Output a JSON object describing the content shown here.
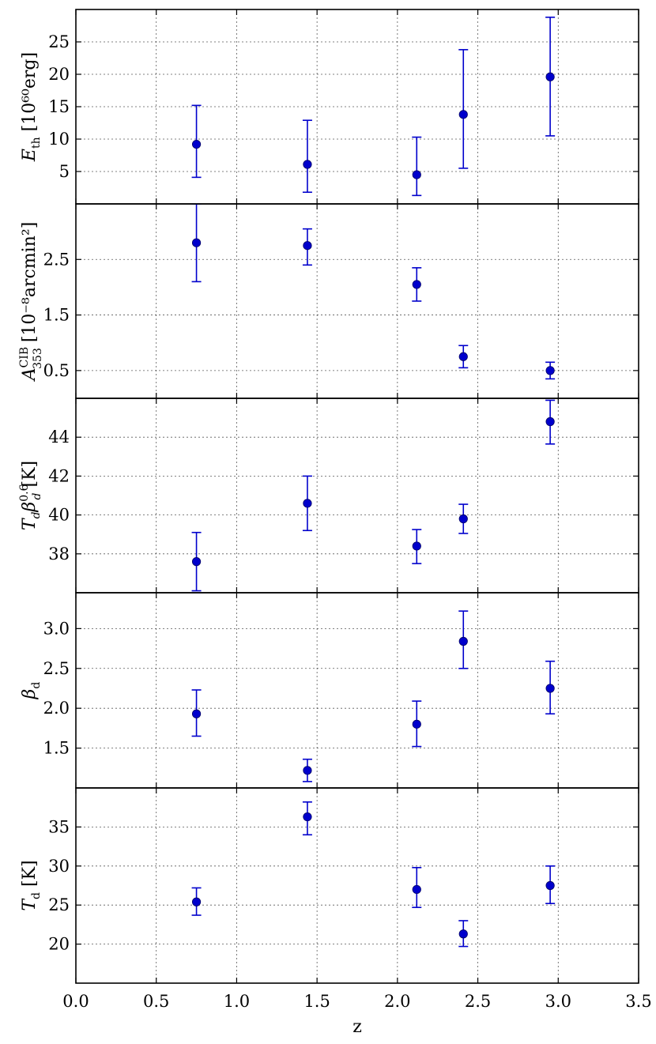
{
  "chart_data": {
    "type": "scatter",
    "x_axis": {
      "label": "z",
      "xlim": [
        0.0,
        3.5
      ],
      "ticks": [
        0.0,
        0.5,
        1.0,
        1.5,
        2.0,
        2.5,
        3.0,
        3.5
      ],
      "tick_labels": [
        "0.0",
        "0.5",
        "1.0",
        "1.5",
        "2.0",
        "2.5",
        "3.0",
        "3.5"
      ]
    },
    "grid": true,
    "panels": [
      {
        "id": "eth",
        "ylabel_main": "E",
        "ylabel_sub": "th",
        "ylabel_unit": "[10⁶⁰erg]",
        "ylim": [
          0,
          30
        ],
        "yticks": [
          5,
          10,
          15,
          20,
          25
        ],
        "ytick_labels": [
          "5",
          "10",
          "15",
          "20",
          "25"
        ],
        "x": [
          0.75,
          1.44,
          2.12,
          2.41,
          2.95
        ],
        "y": [
          9.2,
          6.1,
          4.5,
          13.8,
          19.6
        ],
        "yerr_low": [
          5.1,
          4.3,
          3.2,
          8.3,
          9.1
        ],
        "yerr_high": [
          6.0,
          6.8,
          5.8,
          10.0,
          9.2
        ]
      },
      {
        "id": "acib",
        "ylabel_main": "A",
        "ylabel_sup": "CIB",
        "ylabel_sub": "353",
        "ylabel_unit": "[10⁻⁸arcmin²]",
        "ylim": [
          0,
          3.5
        ],
        "yticks": [
          0.5,
          1.5,
          2.5
        ],
        "ytick_labels": [
          "0.5",
          "1.5",
          "2.5"
        ],
        "x": [
          0.75,
          1.44,
          2.12,
          2.41,
          2.95
        ],
        "y": [
          2.8,
          2.75,
          2.05,
          0.75,
          0.5
        ],
        "yerr_low": [
          0.7,
          0.35,
          0.3,
          0.2,
          0.15
        ],
        "yerr_high": [
          0.7,
          0.3,
          0.3,
          0.2,
          0.15
        ]
      },
      {
        "id": "tdbeta",
        "ylabel_main": "T",
        "ylabel_sub": "d",
        "ylabel_beta": "β",
        "ylabel_beta_sup": "0.6",
        "ylabel_beta_sub": "d",
        "ylabel_unit": "[K]",
        "ylim": [
          36,
          46
        ],
        "yticks": [
          38,
          40,
          42,
          44
        ],
        "ytick_labels": [
          "38",
          "40",
          "42",
          "44"
        ],
        "x": [
          0.75,
          1.44,
          2.12,
          2.41,
          2.95
        ],
        "y": [
          37.6,
          40.6,
          38.4,
          39.8,
          44.8
        ],
        "yerr_low": [
          1.5,
          1.4,
          0.9,
          0.75,
          1.15
        ],
        "yerr_high": [
          1.5,
          1.4,
          0.85,
          0.75,
          1.1
        ]
      },
      {
        "id": "beta",
        "ylabel_main": "β",
        "ylabel_sub": "d",
        "ylabel_unit": "",
        "ylim": [
          1.0,
          3.45
        ],
        "yticks": [
          1.5,
          2.0,
          2.5,
          3.0
        ],
        "ytick_labels": [
          "1.5",
          "2.0",
          "2.5",
          "3.0"
        ],
        "x": [
          0.75,
          1.44,
          2.12,
          2.41,
          2.95
        ],
        "y": [
          1.93,
          1.22,
          1.8,
          2.84,
          2.25
        ],
        "yerr_low": [
          0.28,
          0.14,
          0.28,
          0.34,
          0.32
        ],
        "yerr_high": [
          0.3,
          0.14,
          0.29,
          0.38,
          0.34
        ]
      },
      {
        "id": "td",
        "ylabel_main": "T",
        "ylabel_sub": "d",
        "ylabel_unit": "[K]",
        "ylim": [
          15,
          40
        ],
        "yticks": [
          20,
          25,
          30,
          35
        ],
        "ytick_labels": [
          "20",
          "25",
          "30",
          "35"
        ],
        "x": [
          0.75,
          1.44,
          2.12,
          2.41,
          2.95
        ],
        "y": [
          25.4,
          36.3,
          27.0,
          21.3,
          27.5
        ],
        "yerr_low": [
          1.7,
          2.3,
          2.3,
          1.6,
          2.3
        ],
        "yerr_high": [
          1.8,
          1.9,
          2.8,
          1.7,
          2.5
        ]
      }
    ]
  }
}
